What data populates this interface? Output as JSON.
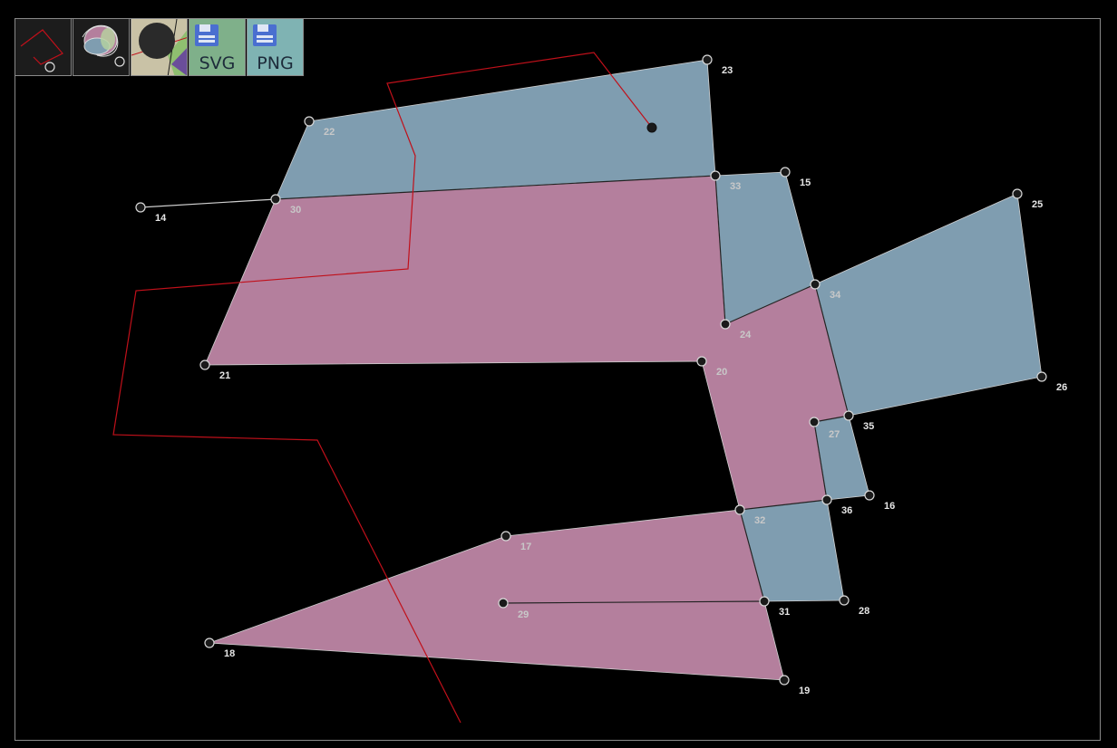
{
  "toolbar": {
    "buttons": [
      {
        "id": "draw-path",
        "icon": "path-tool-icon"
      },
      {
        "id": "brush",
        "icon": "brush-tool-icon"
      },
      {
        "id": "fill",
        "icon": "fill-tool-icon"
      },
      {
        "id": "save-svg",
        "icon": "floppy-disk-icon",
        "label": "SVG"
      },
      {
        "id": "save-png",
        "icon": "floppy-disk-icon",
        "label": "PNG"
      }
    ]
  },
  "colors": {
    "background": "#000000",
    "pink_face": "#b47f9d",
    "blue_face": "#7f9db0",
    "path": "#c0101a",
    "vertex_fill": "#1a1a1a",
    "vertex_stroke": "#d8d8d8",
    "edge": "#d0d0d0"
  },
  "vertices": [
    {
      "id": "14",
      "label": "14"
    },
    {
      "id": "15",
      "label": "15"
    },
    {
      "id": "16",
      "label": "16"
    },
    {
      "id": "17",
      "label": "17"
    },
    {
      "id": "18",
      "label": "18"
    },
    {
      "id": "19",
      "label": "19"
    },
    {
      "id": "20",
      "label": "20"
    },
    {
      "id": "21",
      "label": "21"
    },
    {
      "id": "22",
      "label": "22"
    },
    {
      "id": "23",
      "label": "23"
    },
    {
      "id": "24",
      "label": "24"
    },
    {
      "id": "25",
      "label": "25"
    },
    {
      "id": "26",
      "label": "26"
    },
    {
      "id": "27",
      "label": "27"
    },
    {
      "id": "28",
      "label": "28"
    },
    {
      "id": "29",
      "label": "29"
    },
    {
      "id": "30",
      "label": "30"
    },
    {
      "id": "31",
      "label": "31"
    },
    {
      "id": "32",
      "label": "32"
    },
    {
      "id": "33",
      "label": "33"
    },
    {
      "id": "34",
      "label": "34"
    },
    {
      "id": "35",
      "label": "35"
    },
    {
      "id": "36",
      "label": "36"
    }
  ],
  "faces": [
    {
      "id": "blue-top",
      "color": "blue",
      "vertices": [
        "22",
        "23",
        "33",
        "30"
      ]
    },
    {
      "id": "blue-33-15",
      "color": "blue",
      "vertices": [
        "33",
        "15",
        "34",
        "24"
      ]
    },
    {
      "id": "blue-right",
      "color": "blue",
      "vertices": [
        "34",
        "25",
        "26",
        "35"
      ]
    },
    {
      "id": "blue-small",
      "color": "blue",
      "vertices": [
        "27",
        "35",
        "16",
        "36"
      ]
    },
    {
      "id": "blue-bottom",
      "color": "blue",
      "vertices": [
        "32",
        "36",
        "28",
        "31"
      ]
    },
    {
      "id": "pink-main",
      "color": "pink",
      "vertices": [
        "30",
        "33",
        "24",
        "34",
        "35",
        "27",
        "36",
        "32",
        "20",
        "21"
      ]
    },
    {
      "id": "pink-bottom",
      "color": "pink",
      "vertices": [
        "17",
        "32",
        "31",
        "19",
        "18"
      ]
    }
  ],
  "edges": [
    [
      "14",
      "30"
    ],
    [
      "29",
      "31"
    ]
  ],
  "path_end_vertex": "path-end"
}
